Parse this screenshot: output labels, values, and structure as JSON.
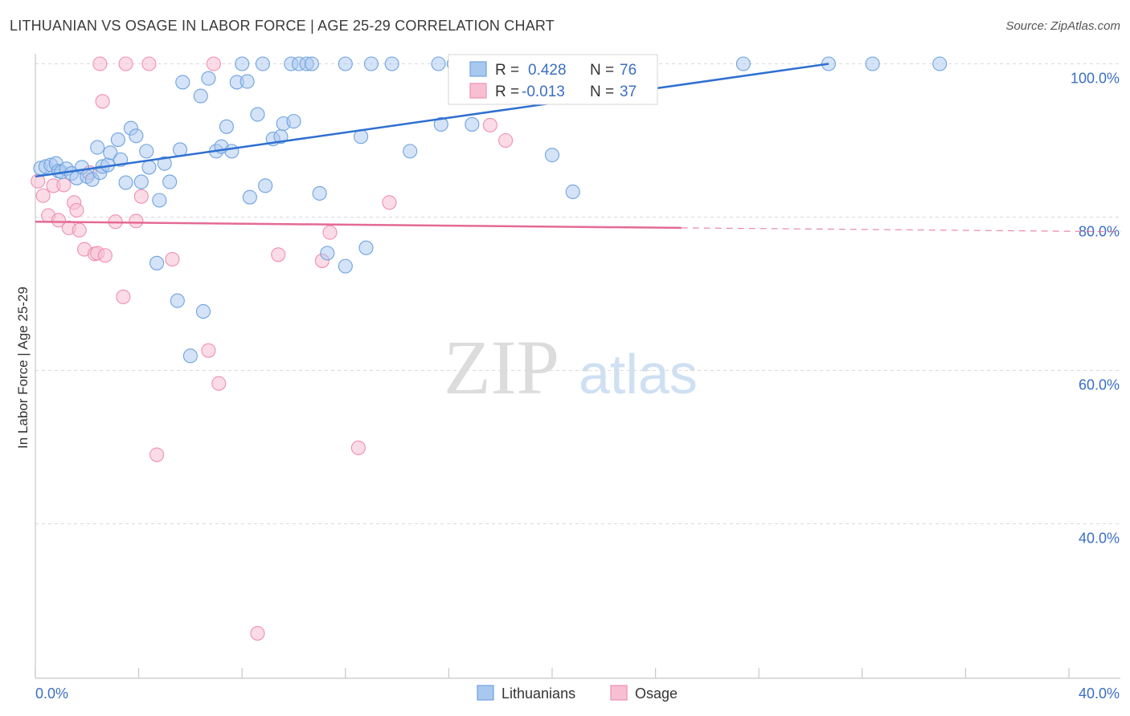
{
  "header": {
    "title": "LITHUANIAN VS OSAGE IN LABOR FORCE | AGE 25-29 CORRELATION CHART",
    "source": "Source: ZipAtlas.com"
  },
  "watermark": {
    "zip": "ZIP",
    "atlas": "atlas"
  },
  "legend": {
    "rows": [
      {
        "r_label": "R =",
        "r_value": "0.428",
        "n_label": "N =",
        "n_value": "76",
        "color": "#6fa3e0"
      },
      {
        "r_label": "R =",
        "r_value": "-0.013",
        "n_label": "N =",
        "n_value": "37",
        "color": "#f08fb0"
      }
    ]
  },
  "bottom_legend": [
    {
      "label": "Lithuanians",
      "color": "#6fa3e0"
    },
    {
      "label": "Osage",
      "color": "#f08fb0"
    }
  ],
  "colors": {
    "blue_fill": "#a9c8ef",
    "blue_stroke": "#6fa3e0",
    "blue_line": "#2f6fd1",
    "pink_fill": "#f7c0d2",
    "pink_stroke": "#f08fb0",
    "pink_line": "#e46a95",
    "tick": "#3b6fc4",
    "grid": "#d9d9d9"
  },
  "chart_data": {
    "type": "scatter",
    "title": "LITHUANIAN VS OSAGE IN LABOR FORCE | AGE 25-29 CORRELATION CHART",
    "xlabel": "",
    "ylabel": "In Labor Force | Age 25-29",
    "xlim": [
      0,
      40
    ],
    "ylim": [
      20,
      102
    ],
    "x_tick_labels": [
      "0.0%",
      "40.0%"
    ],
    "y_ticks": [
      40,
      60,
      80,
      100
    ],
    "y_tick_labels": [
      "40.0%",
      "60.0%",
      "80.0%",
      "100.0%"
    ],
    "grid": true,
    "legend_position": "top-center",
    "series": [
      {
        "name": "Lithuanians",
        "points": [
          [
            0.2,
            86.4
          ],
          [
            0.4,
            86.6
          ],
          [
            0.6,
            86.8
          ],
          [
            0.8,
            87.0
          ],
          [
            0.9,
            86.0
          ],
          [
            1.0,
            85.9
          ],
          [
            1.2,
            86.3
          ],
          [
            1.4,
            85.7
          ],
          [
            1.6,
            85.1
          ],
          [
            1.8,
            86.5
          ],
          [
            2.0,
            85.3
          ],
          [
            2.2,
            84.9
          ],
          [
            2.4,
            89.1
          ],
          [
            2.5,
            85.8
          ],
          [
            2.6,
            86.6
          ],
          [
            2.8,
            86.8
          ],
          [
            2.9,
            88.4
          ],
          [
            3.2,
            90.1
          ],
          [
            3.3,
            87.5
          ],
          [
            3.5,
            84.5
          ],
          [
            3.7,
            91.6
          ],
          [
            3.9,
            90.6
          ],
          [
            4.1,
            84.6
          ],
          [
            4.3,
            88.6
          ],
          [
            4.4,
            86.5
          ],
          [
            4.8,
            82.2
          ],
          [
            5.0,
            87.0
          ],
          [
            5.2,
            84.6
          ],
          [
            5.6,
            88.8
          ],
          [
            4.7,
            74.0
          ],
          [
            5.5,
            69.1
          ],
          [
            5.7,
            97.6
          ],
          [
            6.0,
            61.9
          ],
          [
            6.4,
            95.8
          ],
          [
            6.5,
            67.7
          ],
          [
            6.7,
            98.1
          ],
          [
            7.0,
            88.6
          ],
          [
            7.2,
            89.2
          ],
          [
            7.4,
            91.8
          ],
          [
            7.6,
            88.6
          ],
          [
            7.8,
            97.6
          ],
          [
            8.0,
            100.0
          ],
          [
            8.2,
            97.7
          ],
          [
            8.3,
            82.6
          ],
          [
            8.6,
            93.4
          ],
          [
            8.8,
            100.0
          ],
          [
            8.9,
            84.1
          ],
          [
            9.2,
            90.2
          ],
          [
            9.5,
            90.5
          ],
          [
            9.6,
            92.2
          ],
          [
            9.9,
            100.0
          ],
          [
            10.0,
            92.5
          ],
          [
            10.2,
            100.0
          ],
          [
            10.5,
            100.0
          ],
          [
            10.7,
            100.0
          ],
          [
            11.0,
            83.1
          ],
          [
            11.3,
            75.3
          ],
          [
            12.0,
            73.6
          ],
          [
            12.0,
            100.0
          ],
          [
            12.6,
            90.5
          ],
          [
            12.8,
            76.0
          ],
          [
            13.0,
            100.0
          ],
          [
            13.8,
            100.0
          ],
          [
            14.5,
            88.6
          ],
          [
            15.6,
            100.0
          ],
          [
            15.7,
            92.1
          ],
          [
            16.2,
            100.0
          ],
          [
            16.9,
            92.1
          ],
          [
            17.9,
            100.0
          ],
          [
            20.0,
            88.1
          ],
          [
            20.8,
            83.3
          ],
          [
            22.8,
            100.0
          ],
          [
            27.4,
            100.0
          ],
          [
            30.7,
            100.0
          ],
          [
            32.4,
            100.0
          ],
          [
            35.0,
            100.0
          ]
        ],
        "trend": [
          [
            0.0,
            85.3
          ],
          [
            30.7,
            100.0
          ]
        ]
      },
      {
        "name": "Osage",
        "points": [
          [
            0.1,
            84.7
          ],
          [
            0.3,
            82.8
          ],
          [
            0.5,
            80.2
          ],
          [
            0.7,
            84.1
          ],
          [
            0.9,
            79.6
          ],
          [
            1.1,
            84.2
          ],
          [
            1.3,
            78.6
          ],
          [
            1.5,
            81.9
          ],
          [
            1.6,
            80.9
          ],
          [
            1.7,
            78.3
          ],
          [
            1.9,
            75.8
          ],
          [
            2.1,
            85.8
          ],
          [
            2.3,
            75.2
          ],
          [
            2.4,
            75.3
          ],
          [
            2.5,
            100.0
          ],
          [
            2.6,
            95.1
          ],
          [
            2.7,
            75.0
          ],
          [
            3.1,
            79.4
          ],
          [
            3.4,
            69.6
          ],
          [
            3.5,
            100.0
          ],
          [
            3.9,
            79.5
          ],
          [
            4.1,
            82.7
          ],
          [
            4.4,
            100.0
          ],
          [
            4.7,
            49.0
          ],
          [
            5.3,
            74.5
          ],
          [
            6.7,
            62.6
          ],
          [
            6.9,
            100.0
          ],
          [
            7.1,
            58.3
          ],
          [
            8.6,
            25.7
          ],
          [
            9.4,
            75.1
          ],
          [
            11.1,
            74.3
          ],
          [
            11.4,
            78.0
          ],
          [
            12.5,
            49.9
          ],
          [
            13.7,
            81.9
          ],
          [
            17.6,
            92.0
          ],
          [
            18.2,
            90.0
          ],
          [
            22.5,
            100.0
          ]
        ],
        "trend": [
          [
            0.0,
            79.4
          ],
          [
            25.0,
            78.6
          ]
        ],
        "trend_extrapolated": [
          [
            25.0,
            78.6
          ],
          [
            42.0,
            78.1
          ]
        ]
      }
    ]
  }
}
